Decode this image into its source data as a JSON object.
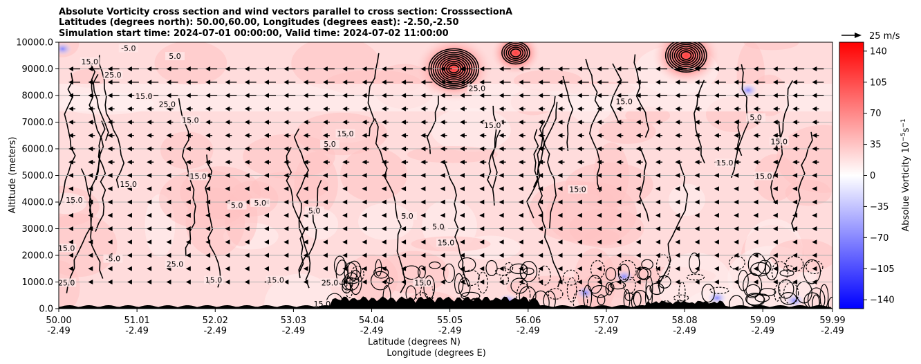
{
  "chart_data": {
    "type": "heatmap",
    "title_lines": [
      "Absolute Vorticity cross section and wind vectors parallel to cross section: CrosssectionA",
      "Latitudes (degrees north): 50.00,60.00, Longitudes (degrees east): -2.50,-2.50",
      "Simulation start time: 2024-07-01 00:00:00, Valid time: 2024-07-02 11:00:00"
    ],
    "ylabel": "Altitude (meters)",
    "xlabel_lines": [
      "Latitude (degrees N)",
      "Longitude (degrees E)"
    ],
    "ylim": [
      0,
      10000
    ],
    "xlim": [
      50.0,
      59.99
    ],
    "y_ticks": [
      "0.0",
      "1000.0",
      "2000.0",
      "3000.0",
      "4000.0",
      "5000.0",
      "6000.0",
      "7000.0",
      "8000.0",
      "9000.0",
      "10000.0"
    ],
    "x_ticks": [
      {
        "lat": "50.00",
        "lon": "-2.49"
      },
      {
        "lat": "51.01",
        "lon": "-2.49"
      },
      {
        "lat": "52.02",
        "lon": "-2.49"
      },
      {
        "lat": "53.03",
        "lon": "-2.49"
      },
      {
        "lat": "54.04",
        "lon": "-2.49"
      },
      {
        "lat": "55.05",
        "lon": "-2.49"
      },
      {
        "lat": "56.06",
        "lon": "-2.49"
      },
      {
        "lat": "57.07",
        "lon": "-2.49"
      },
      {
        "lat": "58.08",
        "lon": "-2.49"
      },
      {
        "lat": "59.09",
        "lon": "-2.49"
      },
      {
        "lat": "59.99",
        "lon": "-2.49"
      }
    ],
    "grid": "horizontal",
    "colorbar": {
      "label": "Absolue Vorticity 10",
      "label_exp": "−5",
      "label_unit": "s",
      "label_unit_exp": "−1",
      "range": [
        -150,
        150
      ],
      "ticks": [
        "140",
        "105",
        "70",
        "35",
        "0",
        "−35",
        "−70",
        "−105",
        "−140"
      ],
      "tick_values": [
        140,
        105,
        70,
        35,
        0,
        -35,
        -70,
        -105,
        -140
      ],
      "colors": {
        "neg": "#0000ff",
        "zero": "#ffffff",
        "pos": "#ff0000"
      }
    },
    "wind_key": "25 m/s",
    "vector_levels_m": [
      9000,
      8500,
      8000,
      7500,
      7000,
      6500,
      6000,
      5500,
      5000,
      4500,
      4000,
      3500,
      3000,
      2500,
      2000,
      1500,
      1000
    ],
    "vorticity_maxima": [
      {
        "lat": 55.1,
        "alt": 9000,
        "value": 120
      },
      {
        "lat": 58.1,
        "alt": 9500,
        "value": 100
      },
      {
        "lat": 55.9,
        "alt": 9600,
        "value": 60
      }
    ],
    "contour_labels": [
      {
        "text": "-5.0",
        "lat": 50.9,
        "alt": 9700
      },
      {
        "text": "15.0",
        "lat": 50.4,
        "alt": 9200
      },
      {
        "text": "5.0",
        "lat": 51.5,
        "alt": 9400
      },
      {
        "text": "25.0",
        "lat": 50.7,
        "alt": 8700
      },
      {
        "text": "15.0",
        "lat": 51.1,
        "alt": 7900
      },
      {
        "text": "15.0",
        "lat": 51.7,
        "alt": 7000
      },
      {
        "text": "15.0",
        "lat": 53.7,
        "alt": 6500
      },
      {
        "text": "5.0",
        "lat": 53.5,
        "alt": 6100
      },
      {
        "text": "15.0",
        "lat": 51.8,
        "alt": 4900
      },
      {
        "text": "15.0",
        "lat": 50.9,
        "alt": 4600
      },
      {
        "text": "15.0",
        "lat": 50.2,
        "alt": 4000
      },
      {
        "text": "5.0",
        "lat": 52.3,
        "alt": 3800
      },
      {
        "text": "5.0",
        "lat": 52.6,
        "alt": 3900
      },
      {
        "text": "5.0",
        "lat": 53.3,
        "alt": 3600
      },
      {
        "text": "5.0",
        "lat": 54.5,
        "alt": 3400
      },
      {
        "text": "5.0",
        "lat": 54.9,
        "alt": 3000
      },
      {
        "text": "15.0",
        "lat": 55.0,
        "alt": 2400
      },
      {
        "text": "15.0",
        "lat": 56.7,
        "alt": 4400
      },
      {
        "text": "15.0",
        "lat": 58.6,
        "alt": 5400
      },
      {
        "text": "15.0",
        "lat": 59.1,
        "alt": 4900
      },
      {
        "text": "5.0",
        "lat": 59.0,
        "alt": 7100
      },
      {
        "text": "25.0",
        "lat": 55.4,
        "alt": 8200
      },
      {
        "text": "15.0",
        "lat": 55.6,
        "alt": 6800
      },
      {
        "text": "15.0",
        "lat": 57.3,
        "alt": 7700
      },
      {
        "text": "25.0",
        "lat": 51.5,
        "alt": 1600
      },
      {
        "text": "15.0",
        "lat": 52.8,
        "alt": 1000
      },
      {
        "text": "15.0",
        "lat": 53.4,
        "alt": 100
      },
      {
        "text": "25.0",
        "lat": 53.5,
        "alt": 900
      },
      {
        "text": "15.0",
        "lat": 54.7,
        "alt": 900
      },
      {
        "text": "25.0",
        "lat": 50.1,
        "alt": 900
      },
      {
        "text": "15.0",
        "lat": 50.1,
        "alt": 2200
      },
      {
        "text": "-5.0",
        "lat": 50.7,
        "alt": 1800
      },
      {
        "text": "15.0",
        "lat": 59.3,
        "alt": 6200
      },
      {
        "text": "15.0",
        "lat": 52.0,
        "alt": 1000
      },
      {
        "text": "25.0",
        "lat": 51.4,
        "alt": 7600
      }
    ]
  }
}
